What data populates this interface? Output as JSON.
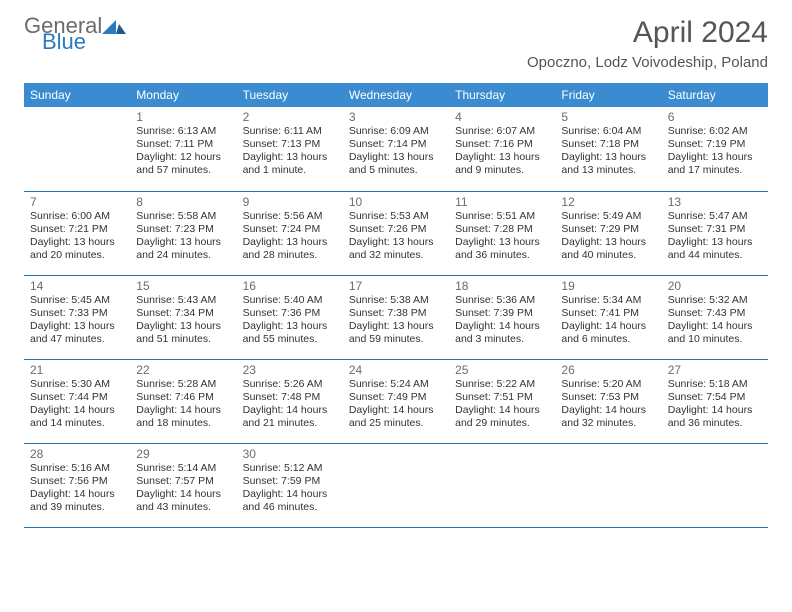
{
  "brand": {
    "general": "General",
    "blue": "Blue"
  },
  "title": "April 2024",
  "location": "Opoczno, Lodz Voivodeship, Poland",
  "colors": {
    "header_bg": "#3b8bd0",
    "header_text": "#ffffff",
    "row_border": "#2b6fa8",
    "daynum": "#6b6b6b",
    "text": "#333333",
    "brand_gray": "#6b6b6b",
    "brand_blue": "#2b7bbf"
  },
  "day_headers": [
    "Sunday",
    "Monday",
    "Tuesday",
    "Wednesday",
    "Thursday",
    "Friday",
    "Saturday"
  ],
  "weeks": [
    [
      null,
      {
        "n": "1",
        "sr": "Sunrise: 6:13 AM",
        "ss": "Sunset: 7:11 PM",
        "d1": "Daylight: 12 hours",
        "d2": "and 57 minutes."
      },
      {
        "n": "2",
        "sr": "Sunrise: 6:11 AM",
        "ss": "Sunset: 7:13 PM",
        "d1": "Daylight: 13 hours",
        "d2": "and 1 minute."
      },
      {
        "n": "3",
        "sr": "Sunrise: 6:09 AM",
        "ss": "Sunset: 7:14 PM",
        "d1": "Daylight: 13 hours",
        "d2": "and 5 minutes."
      },
      {
        "n": "4",
        "sr": "Sunrise: 6:07 AM",
        "ss": "Sunset: 7:16 PM",
        "d1": "Daylight: 13 hours",
        "d2": "and 9 minutes."
      },
      {
        "n": "5",
        "sr": "Sunrise: 6:04 AM",
        "ss": "Sunset: 7:18 PM",
        "d1": "Daylight: 13 hours",
        "d2": "and 13 minutes."
      },
      {
        "n": "6",
        "sr": "Sunrise: 6:02 AM",
        "ss": "Sunset: 7:19 PM",
        "d1": "Daylight: 13 hours",
        "d2": "and 17 minutes."
      }
    ],
    [
      {
        "n": "7",
        "sr": "Sunrise: 6:00 AM",
        "ss": "Sunset: 7:21 PM",
        "d1": "Daylight: 13 hours",
        "d2": "and 20 minutes."
      },
      {
        "n": "8",
        "sr": "Sunrise: 5:58 AM",
        "ss": "Sunset: 7:23 PM",
        "d1": "Daylight: 13 hours",
        "d2": "and 24 minutes."
      },
      {
        "n": "9",
        "sr": "Sunrise: 5:56 AM",
        "ss": "Sunset: 7:24 PM",
        "d1": "Daylight: 13 hours",
        "d2": "and 28 minutes."
      },
      {
        "n": "10",
        "sr": "Sunrise: 5:53 AM",
        "ss": "Sunset: 7:26 PM",
        "d1": "Daylight: 13 hours",
        "d2": "and 32 minutes."
      },
      {
        "n": "11",
        "sr": "Sunrise: 5:51 AM",
        "ss": "Sunset: 7:28 PM",
        "d1": "Daylight: 13 hours",
        "d2": "and 36 minutes."
      },
      {
        "n": "12",
        "sr": "Sunrise: 5:49 AM",
        "ss": "Sunset: 7:29 PM",
        "d1": "Daylight: 13 hours",
        "d2": "and 40 minutes."
      },
      {
        "n": "13",
        "sr": "Sunrise: 5:47 AM",
        "ss": "Sunset: 7:31 PM",
        "d1": "Daylight: 13 hours",
        "d2": "and 44 minutes."
      }
    ],
    [
      {
        "n": "14",
        "sr": "Sunrise: 5:45 AM",
        "ss": "Sunset: 7:33 PM",
        "d1": "Daylight: 13 hours",
        "d2": "and 47 minutes."
      },
      {
        "n": "15",
        "sr": "Sunrise: 5:43 AM",
        "ss": "Sunset: 7:34 PM",
        "d1": "Daylight: 13 hours",
        "d2": "and 51 minutes."
      },
      {
        "n": "16",
        "sr": "Sunrise: 5:40 AM",
        "ss": "Sunset: 7:36 PM",
        "d1": "Daylight: 13 hours",
        "d2": "and 55 minutes."
      },
      {
        "n": "17",
        "sr": "Sunrise: 5:38 AM",
        "ss": "Sunset: 7:38 PM",
        "d1": "Daylight: 13 hours",
        "d2": "and 59 minutes."
      },
      {
        "n": "18",
        "sr": "Sunrise: 5:36 AM",
        "ss": "Sunset: 7:39 PM",
        "d1": "Daylight: 14 hours",
        "d2": "and 3 minutes."
      },
      {
        "n": "19",
        "sr": "Sunrise: 5:34 AM",
        "ss": "Sunset: 7:41 PM",
        "d1": "Daylight: 14 hours",
        "d2": "and 6 minutes."
      },
      {
        "n": "20",
        "sr": "Sunrise: 5:32 AM",
        "ss": "Sunset: 7:43 PM",
        "d1": "Daylight: 14 hours",
        "d2": "and 10 minutes."
      }
    ],
    [
      {
        "n": "21",
        "sr": "Sunrise: 5:30 AM",
        "ss": "Sunset: 7:44 PM",
        "d1": "Daylight: 14 hours",
        "d2": "and 14 minutes."
      },
      {
        "n": "22",
        "sr": "Sunrise: 5:28 AM",
        "ss": "Sunset: 7:46 PM",
        "d1": "Daylight: 14 hours",
        "d2": "and 18 minutes."
      },
      {
        "n": "23",
        "sr": "Sunrise: 5:26 AM",
        "ss": "Sunset: 7:48 PM",
        "d1": "Daylight: 14 hours",
        "d2": "and 21 minutes."
      },
      {
        "n": "24",
        "sr": "Sunrise: 5:24 AM",
        "ss": "Sunset: 7:49 PM",
        "d1": "Daylight: 14 hours",
        "d2": "and 25 minutes."
      },
      {
        "n": "25",
        "sr": "Sunrise: 5:22 AM",
        "ss": "Sunset: 7:51 PM",
        "d1": "Daylight: 14 hours",
        "d2": "and 29 minutes."
      },
      {
        "n": "26",
        "sr": "Sunrise: 5:20 AM",
        "ss": "Sunset: 7:53 PM",
        "d1": "Daylight: 14 hours",
        "d2": "and 32 minutes."
      },
      {
        "n": "27",
        "sr": "Sunrise: 5:18 AM",
        "ss": "Sunset: 7:54 PM",
        "d1": "Daylight: 14 hours",
        "d2": "and 36 minutes."
      }
    ],
    [
      {
        "n": "28",
        "sr": "Sunrise: 5:16 AM",
        "ss": "Sunset: 7:56 PM",
        "d1": "Daylight: 14 hours",
        "d2": "and 39 minutes."
      },
      {
        "n": "29",
        "sr": "Sunrise: 5:14 AM",
        "ss": "Sunset: 7:57 PM",
        "d1": "Daylight: 14 hours",
        "d2": "and 43 minutes."
      },
      {
        "n": "30",
        "sr": "Sunrise: 5:12 AM",
        "ss": "Sunset: 7:59 PM",
        "d1": "Daylight: 14 hours",
        "d2": "and 46 minutes."
      },
      null,
      null,
      null,
      null
    ]
  ]
}
